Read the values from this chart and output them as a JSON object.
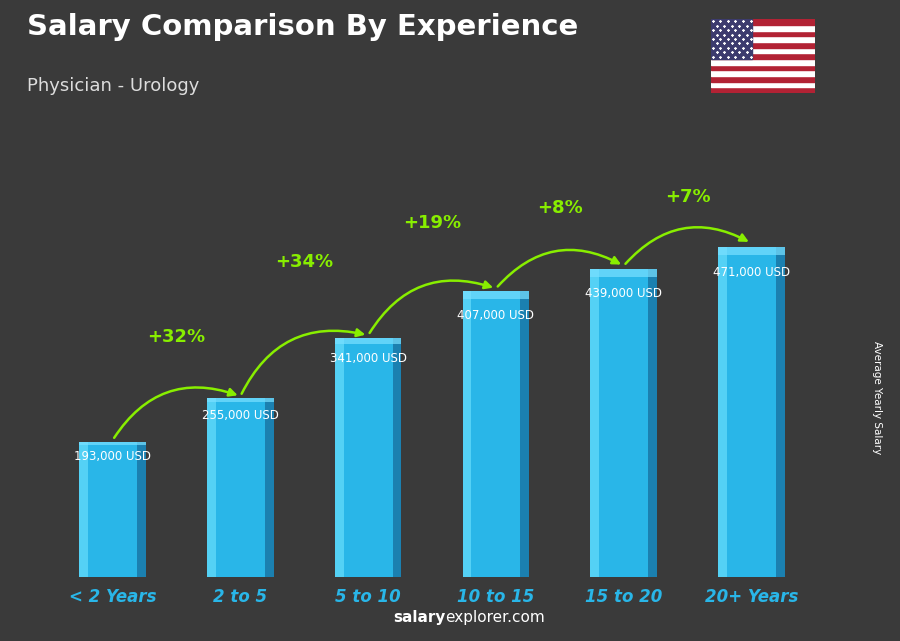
{
  "title": "Salary Comparison By Experience",
  "subtitle": "Physician - Urology",
  "categories": [
    "< 2 Years",
    "2 to 5",
    "5 to 10",
    "10 to 15",
    "15 to 20",
    "20+ Years"
  ],
  "values": [
    193000,
    255000,
    341000,
    407000,
    439000,
    471000
  ],
  "value_labels": [
    "193,000 USD",
    "255,000 USD",
    "341,000 USD",
    "407,000 USD",
    "439,000 USD",
    "471,000 USD"
  ],
  "pct_changes": [
    null,
    "+32%",
    "+34%",
    "+19%",
    "+8%",
    "+7%"
  ],
  "bar_color_main": "#29b6e8",
  "bar_color_light": "#5cd6f8",
  "bar_color_dark": "#1a7aaa",
  "bar_color_top": "#7ae0ff",
  "bar_color_right": "#1188cc",
  "background_color": "#3a3a3a",
  "title_color": "#ffffff",
  "subtitle_color": "#dddddd",
  "label_color": "#29b6e8",
  "value_color": "#ffffff",
  "pct_color": "#88ee00",
  "ylabel": "Average Yearly Salary",
  "footer_bold": "salary",
  "footer_normal": "explorer.com",
  "ylim": [
    0,
    530000
  ],
  "bar_width": 0.52,
  "flag_colors": {
    "red": "#B22234",
    "white": "#FFFFFF",
    "blue": "#3C3B6E"
  }
}
